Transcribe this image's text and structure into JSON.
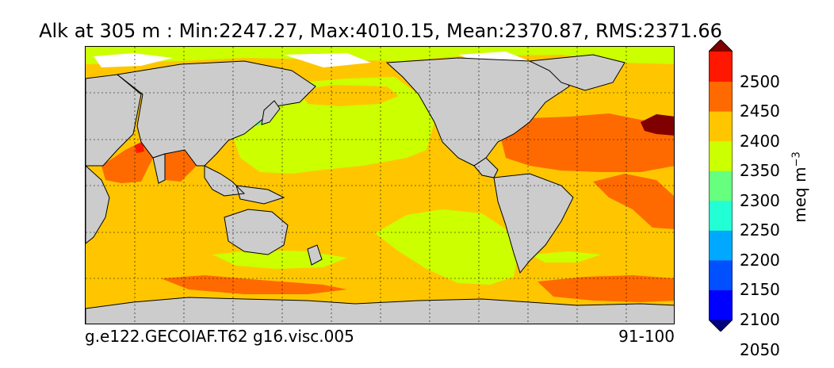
{
  "title": "Alk at 305 m : Min:2247.27, Max:4010.15, Mean:2370.87, RMS:2371.66",
  "footer": {
    "left": "g.e122.GECOIAF.T62 g16.visc.005",
    "right": "91-100"
  },
  "colorbar": {
    "unit_base": "meq m",
    "unit_exp": "−3",
    "ticks": [
      "2500",
      "2450",
      "2400",
      "2350",
      "2300",
      "2250",
      "2200",
      "2150",
      "2100",
      "2050"
    ],
    "colors": [
      "#00007f",
      "#0000ff",
      "#0050ff",
      "#00a8ff",
      "#22ffd4",
      "#66ff7e",
      "#ccff00",
      "#ffc600",
      "#ff6a00",
      "#ff1800",
      "#800000"
    ],
    "range": [
      2000,
      2550
    ],
    "extend": "both"
  },
  "map": {
    "projection": "cylindrical equidistant",
    "land_color": "#cccccc",
    "ice_color": "#ffffff",
    "graticule": "dotted"
  }
}
